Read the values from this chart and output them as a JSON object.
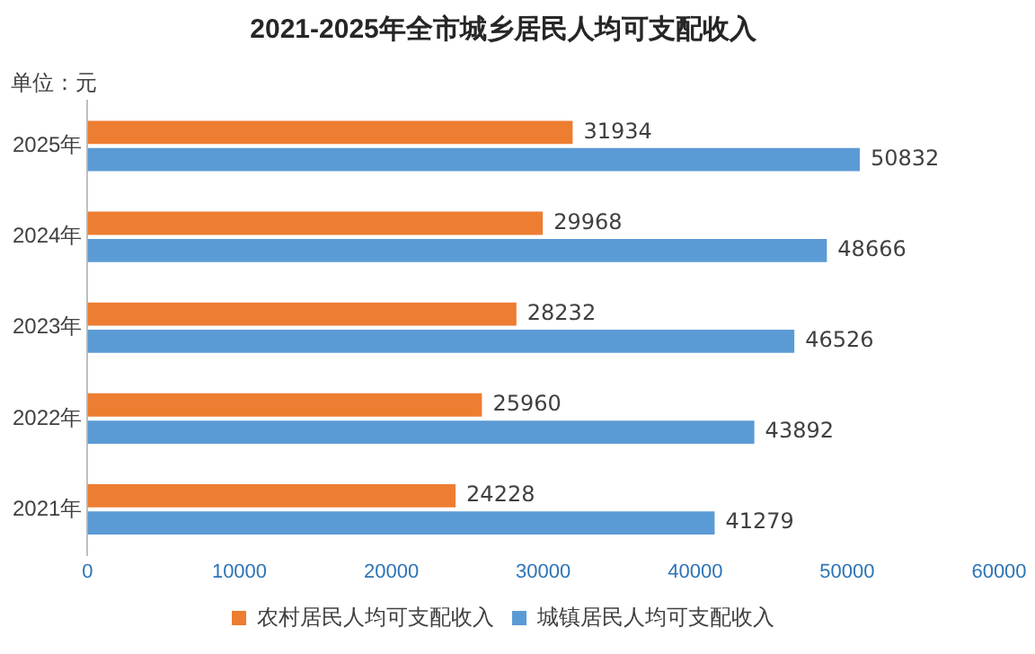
{
  "chart_data": {
    "type": "bar",
    "orientation": "horizontal",
    "title": "2021-2025年全市城乡居民人均可支配收入",
    "annotations": [
      "单位：元"
    ],
    "categories": [
      "2025年",
      "2024年",
      "2023年",
      "2022年",
      "2021年"
    ],
    "series": [
      {
        "name": "农村居民人均可支配收入",
        "color": "#ed7d31",
        "values": [
          31934,
          29968,
          28232,
          25960,
          24228
        ]
      },
      {
        "name": "城镇居民人均可支配收入",
        "color": "#5b9bd5",
        "values": [
          50832,
          48666,
          46526,
          43892,
          41279
        ]
      }
    ],
    "xlim": [
      0,
      60000
    ],
    "xticks": [
      0,
      10000,
      20000,
      30000,
      40000,
      50000,
      60000
    ],
    "grid": false,
    "legend": "bottom",
    "data_labels": true
  }
}
